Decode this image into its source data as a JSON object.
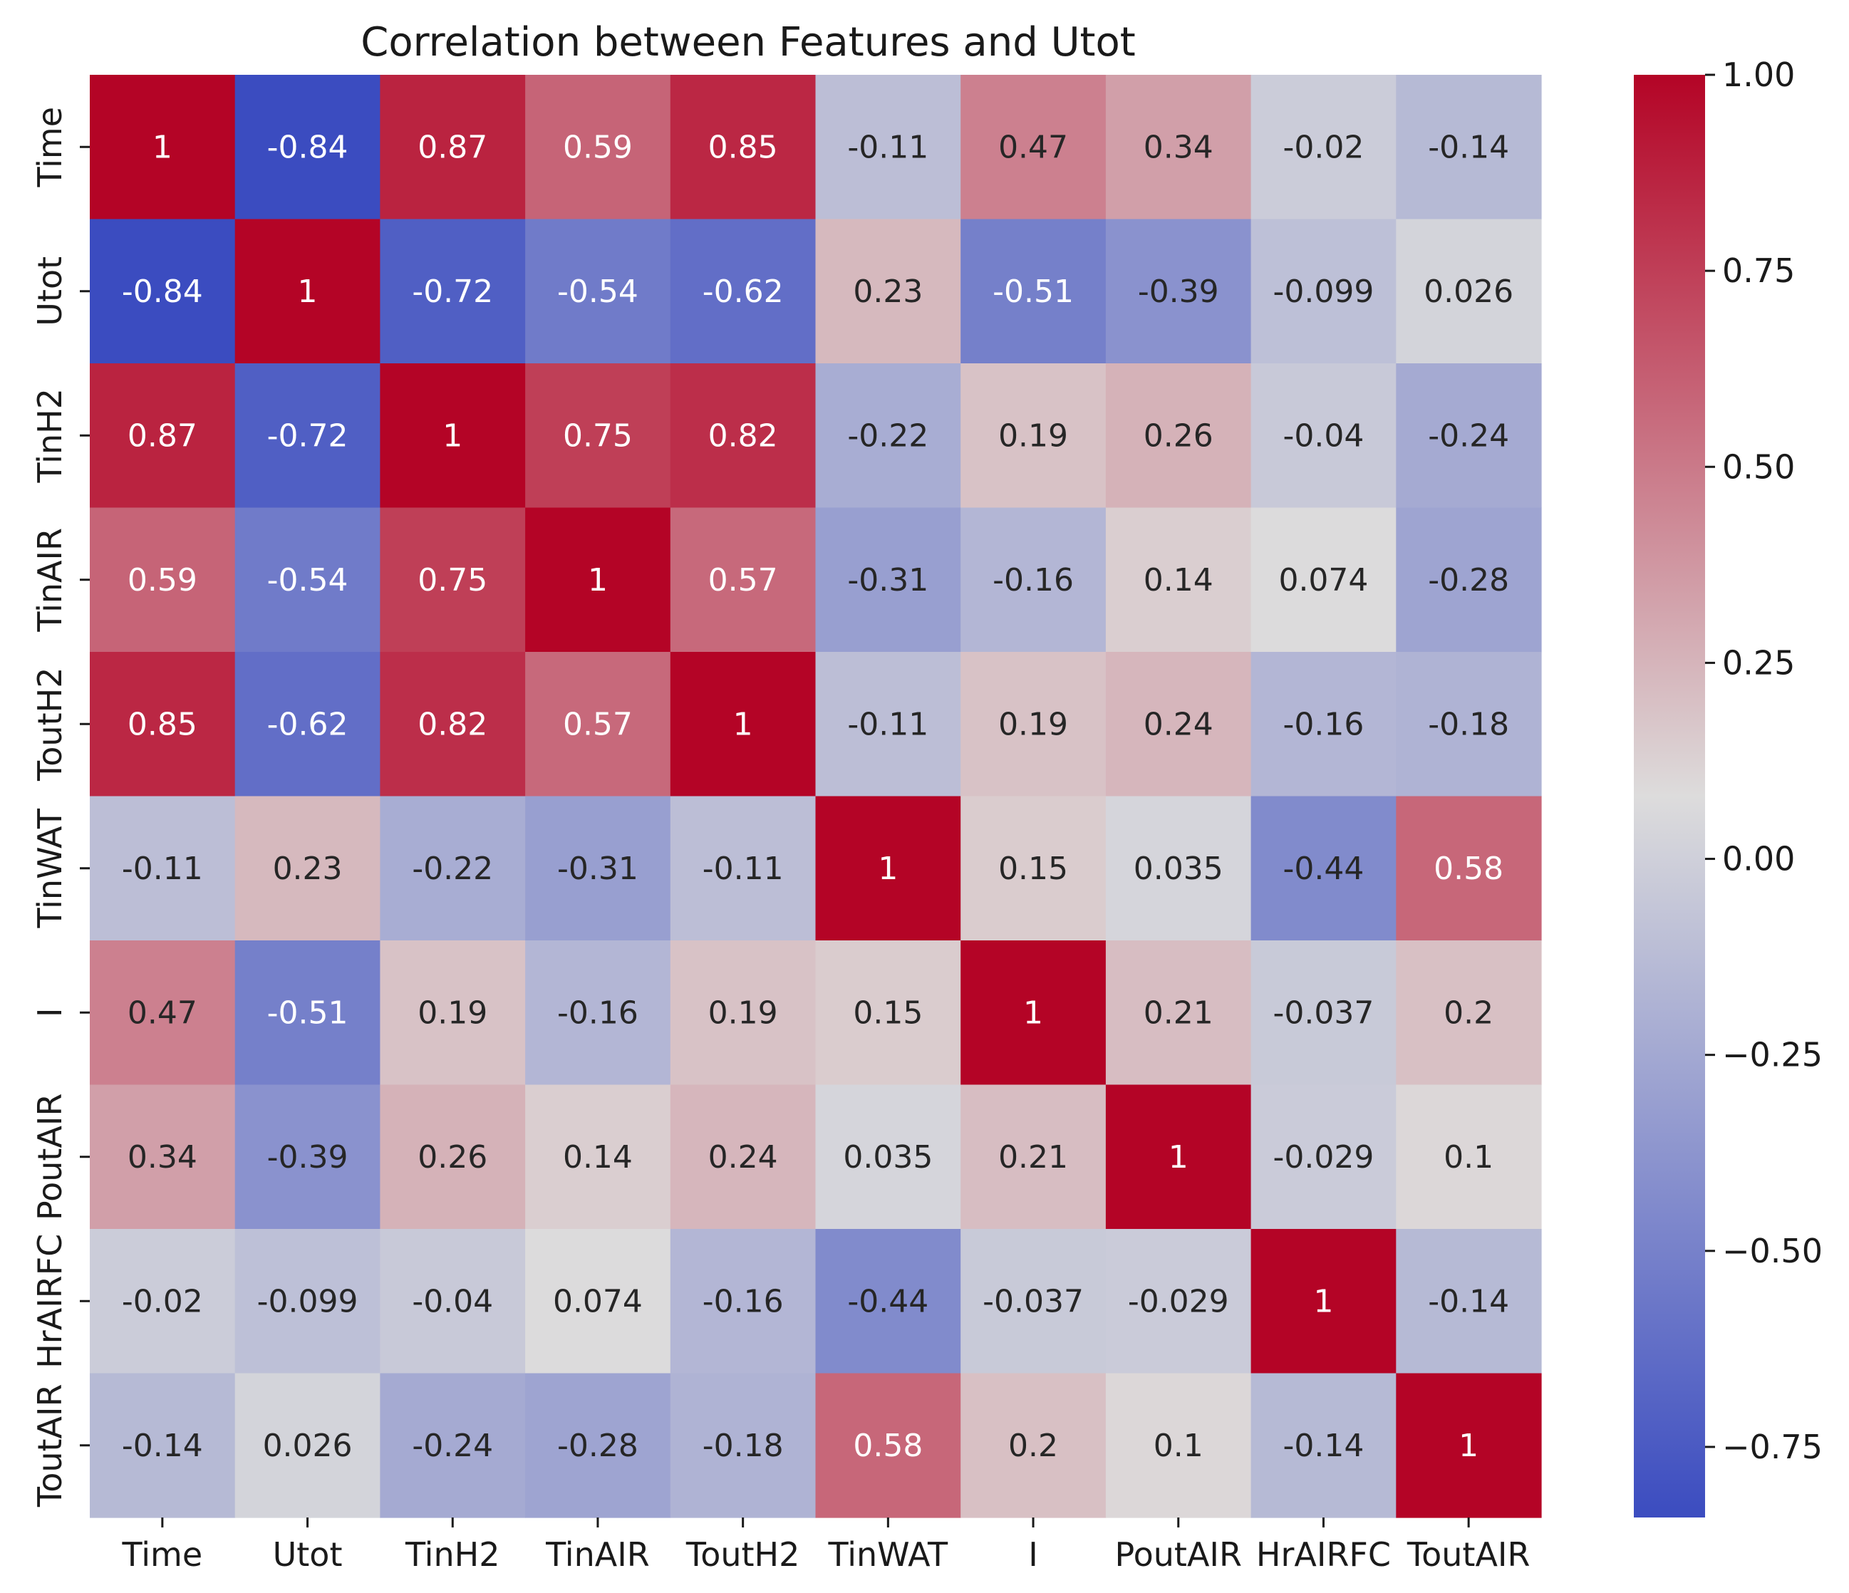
{
  "chart_data": {
    "type": "heatmap",
    "title": "Correlation between Features and Utot",
    "xlabel": "",
    "ylabel": "",
    "columns": [
      "Time",
      "Utot",
      "TinH2",
      "TinAIR",
      "ToutH2",
      "TinWAT",
      "I",
      "PoutAIR",
      "HrAIRFC",
      "ToutAIR"
    ],
    "rows": [
      "Time",
      "Utot",
      "TinH2",
      "TinAIR",
      "ToutH2",
      "TinWAT",
      "I",
      "PoutAIR",
      "HrAIRFC",
      "ToutAIR"
    ],
    "values": [
      [
        1,
        -0.84,
        0.87,
        0.59,
        0.85,
        -0.11,
        0.47,
        0.34,
        -0.02,
        -0.14
      ],
      [
        -0.84,
        1,
        -0.72,
        -0.54,
        -0.62,
        0.23,
        -0.51,
        -0.39,
        -0.099,
        0.026
      ],
      [
        0.87,
        -0.72,
        1,
        0.75,
        0.82,
        -0.22,
        0.19,
        0.26,
        -0.04,
        -0.24
      ],
      [
        0.59,
        -0.54,
        0.75,
        1,
        0.57,
        -0.31,
        -0.16,
        0.14,
        0.074,
        -0.28
      ],
      [
        0.85,
        -0.62,
        0.82,
        0.57,
        1,
        -0.11,
        0.19,
        0.24,
        -0.16,
        -0.18
      ],
      [
        -0.11,
        0.23,
        -0.22,
        -0.31,
        -0.11,
        1,
        0.15,
        0.035,
        -0.44,
        0.58
      ],
      [
        0.47,
        -0.51,
        0.19,
        -0.16,
        0.19,
        0.15,
        1,
        0.21,
        -0.037,
        0.2
      ],
      [
        0.34,
        -0.39,
        0.26,
        0.14,
        0.24,
        0.035,
        0.21,
        1,
        -0.029,
        0.1
      ],
      [
        -0.02,
        -0.099,
        -0.04,
        0.074,
        -0.16,
        -0.44,
        -0.037,
        -0.029,
        1,
        -0.14
      ],
      [
        -0.14,
        0.026,
        -0.24,
        -0.28,
        -0.18,
        0.58,
        0.2,
        0.1,
        -0.14,
        1
      ]
    ],
    "annotations": [
      [
        "1",
        "-0.84",
        "0.87",
        "0.59",
        "0.85",
        "-0.11",
        "0.47",
        "0.34",
        "-0.02",
        "-0.14"
      ],
      [
        "-0.84",
        "1",
        "-0.72",
        "-0.54",
        "-0.62",
        "0.23",
        "-0.51",
        "-0.39",
        "-0.099",
        "0.026"
      ],
      [
        "0.87",
        "-0.72",
        "1",
        "0.75",
        "0.82",
        "-0.22",
        "0.19",
        "0.26",
        "-0.04",
        "-0.24"
      ],
      [
        "0.59",
        "-0.54",
        "0.75",
        "1",
        "0.57",
        "-0.31",
        "-0.16",
        "0.14",
        "0.074",
        "-0.28"
      ],
      [
        "0.85",
        "-0.62",
        "0.82",
        "0.57",
        "1",
        "-0.11",
        "0.19",
        "0.24",
        "-0.16",
        "-0.18"
      ],
      [
        "-0.11",
        "0.23",
        "-0.22",
        "-0.31",
        "-0.11",
        "1",
        "0.15",
        "0.035",
        "-0.44",
        "0.58"
      ],
      [
        "0.47",
        "-0.51",
        "0.19",
        "-0.16",
        "0.19",
        "0.15",
        "1",
        "0.21",
        "-0.037",
        "0.2"
      ],
      [
        "0.34",
        "-0.39",
        "0.26",
        "0.14",
        "0.24",
        "0.035",
        "0.21",
        "1",
        "-0.029",
        "0.1"
      ],
      [
        "-0.02",
        "-0.099",
        "-0.04",
        "0.074",
        "-0.16",
        "-0.44",
        "-0.037",
        "-0.029",
        "1",
        "-0.14"
      ],
      [
        "-0.14",
        "0.026",
        "-0.24",
        "-0.28",
        "-0.18",
        "0.58",
        "0.2",
        "0.1",
        "-0.14",
        "1"
      ]
    ],
    "colormap": "coolwarm",
    "colormap_stops": [
      "#3b4cc0",
      "#dddcdc",
      "#b40426"
    ],
    "vmin": -0.84,
    "vmax": 1.0,
    "colorbar": {
      "ticks": [
        1.0,
        0.75,
        0.5,
        0.25,
        0.0,
        -0.25,
        -0.5,
        -0.75
      ],
      "tick_labels": [
        "1.00",
        "0.75",
        "0.50",
        "0.25",
        "0.00",
        "−0.25",
        "−0.50",
        "−0.75"
      ],
      "placement": "right"
    }
  }
}
